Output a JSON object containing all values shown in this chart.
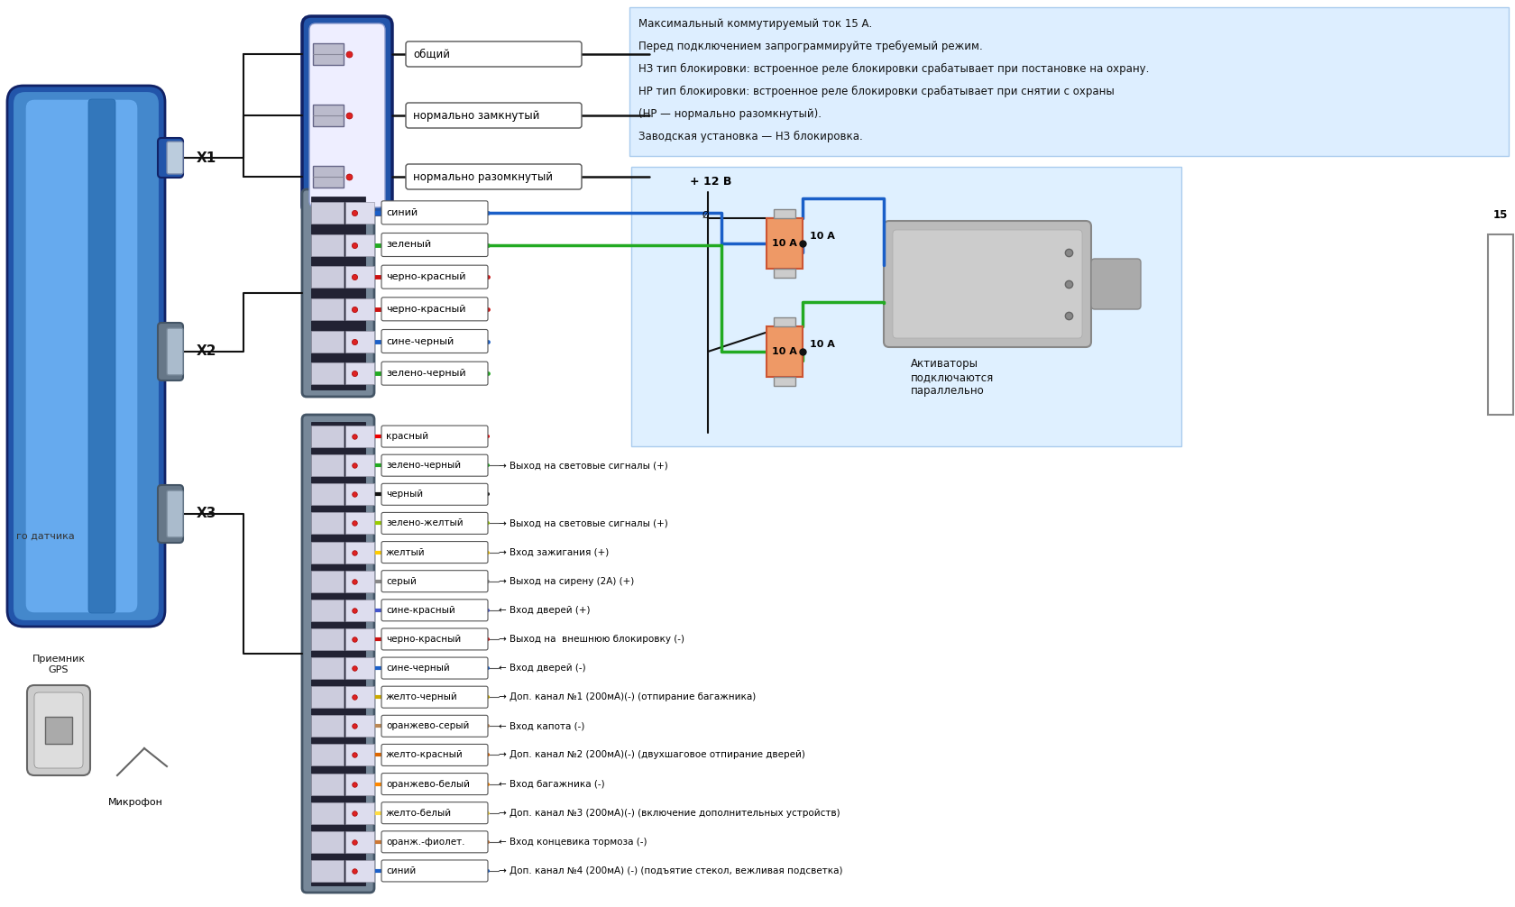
{
  "bg": "#ffffff",
  "info_bg": "#ddeeff",
  "actuator_bg": "#dff0ff",
  "info_lines": [
    "Максимальный коммутируемый ток 15 А.",
    "Перед подключением запрограммируйте требуемый режим.",
    "НЗ тип блокировки: встроенное реле блокировки срабатывает при постановке на охрану.",
    "НР тип блокировки: встроенное реле блокировки срабатывает при снятии с охраны",
    "(НР — нормально разомкнутый).",
    "Заводская установка — НЗ блокировка."
  ],
  "relay_labels": [
    "общий",
    "нормально замкнутый",
    "нормально разомкнутый"
  ],
  "x1_label": "X1",
  "x2_label": "X2",
  "x3_label": "X3",
  "plus12": "+ 12 В",
  "fuse1": "10 А",
  "fuse2": "10 А",
  "activators": "Активаторы\nподключаются\nпараллельно",
  "gps": "Приемник\nGPS",
  "mic": "Микрофон",
  "sensor": "го датчика",
  "x2_wires": [
    {
      "label": "синий",
      "color": "#1a5fc8"
    },
    {
      "label": "зеленый",
      "color": "#22aa22"
    },
    {
      "label": "черно-красный",
      "color": "#cc1111"
    },
    {
      "label": "черно-красный",
      "color": "#cc1111"
    },
    {
      "label": "сине-черный",
      "color": "#1a5fc8"
    },
    {
      "label": "зелено-черный",
      "color": "#22aa22"
    }
  ],
  "x3_wires": [
    {
      "label": "красный",
      "color": "#ee0000",
      "desc": ""
    },
    {
      "label": "зелено-черный",
      "color": "#22aa22",
      "desc": "→ Выход на световые сигналы (+)"
    },
    {
      "label": "черный",
      "color": "#111111",
      "desc": ""
    },
    {
      "label": "зелено-желтый",
      "color": "#99cc00",
      "desc": "→ Выход на световые сигналы (+)"
    },
    {
      "label": "желтый",
      "color": "#ffcc00",
      "desc": "→ Вход зажигания (+)"
    },
    {
      "label": "серый",
      "color": "#888888",
      "desc": "→ Выход на сирену (2А) (+)"
    },
    {
      "label": "сине-красный",
      "color": "#4455cc",
      "desc": "← Вход дверей (+)"
    },
    {
      "label": "черно-красный",
      "color": "#cc1111",
      "desc": "→ Выход на  внешнюю блокировку (-)"
    },
    {
      "label": "сине-черный",
      "color": "#1a5fc8",
      "desc": "← Вход дверей (-)"
    },
    {
      "label": "желто-черный",
      "color": "#ccaa00",
      "desc": "→ Доп. канал №1 (200мА)(-) (отпирание багажника)"
    },
    {
      "label": "оранжево-серый",
      "color": "#bb8855",
      "desc": "← Вход капота (-)"
    },
    {
      "label": "желто-красный",
      "color": "#dd6600",
      "desc": "→ Доп. канал №2 (200мА)(-) (двухшаговое отпирание дверей)"
    },
    {
      "label": "оранжево-белый",
      "color": "#ff8800",
      "desc": "← Вход багажника (-)"
    },
    {
      "label": "желто-белый",
      "color": "#ffdd44",
      "desc": "→ Доп. канал №3 (200мА)(-) (включение дополнительных устройств)"
    },
    {
      "label": "оранж.-фиолет.",
      "color": "#cc7733",
      "desc": "← Вход концевика тормоза (-)"
    },
    {
      "label": "синий",
      "color": "#1a5fc8",
      "desc": "→ Доп. канал №4 (200мА) (-) (подъятие стекол, вежливая подсветка)"
    }
  ]
}
